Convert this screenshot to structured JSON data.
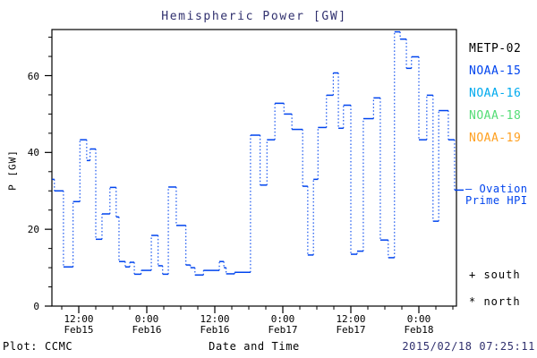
{
  "title": "Hemispheric Power [GW]",
  "colors": {
    "title": "#30306e",
    "axis": "#000000",
    "timestamp": "#30306e",
    "hpi_line": "#0044ee"
  },
  "legend": {
    "satellites": [
      {
        "label": "METP-02",
        "color": "#000000"
      },
      {
        "label": "NOAA-15",
        "color": "#0044ee"
      },
      {
        "label": "NOAA-16",
        "color": "#00aaee"
      },
      {
        "label": "NOAA-18",
        "color": "#55dd77"
      },
      {
        "label": "NOAA-19",
        "color": "#ffa020"
      }
    ],
    "model": {
      "line1": "– Ovation",
      "line2": "Prime HPI",
      "color": "#0044ee"
    },
    "markers": [
      {
        "text": "+ south"
      },
      {
        "text": "* north"
      }
    ]
  },
  "footer": {
    "left": "Plot: CCMC",
    "center": "Date and Time",
    "right": "2015/02/18 07:25:11"
  },
  "chart_data": {
    "type": "line",
    "subtype": "dotted-step-histogram",
    "title": "Hemispheric Power [GW]",
    "xlabel": "Date and Time",
    "ylabel": "P [GW]",
    "ylim": [
      0,
      72
    ],
    "yticks_major": [
      0,
      20,
      40,
      60
    ],
    "ytick_minor_step": 5,
    "x_hours_range": [
      7.3,
      79.9
    ],
    "xticks_major": [
      {
        "hour": 12,
        "top": "12:00",
        "bottom": "Feb15"
      },
      {
        "hour": 24,
        "top": "0:00",
        "bottom": "Feb16"
      },
      {
        "hour": 36,
        "top": "12:00",
        "bottom": "Feb16"
      },
      {
        "hour": 48,
        "top": "0:00",
        "bottom": "Feb17"
      },
      {
        "hour": 60,
        "top": "12:00",
        "bottom": "Feb17"
      },
      {
        "hour": 72,
        "top": "0:00",
        "bottom": "Feb18"
      }
    ],
    "xtick_minor_step_hours": 3,
    "line_color": "#0044ee",
    "grid": false,
    "legend_position": "right-outside",
    "series": [
      {
        "name": "Ovation Prime HPI",
        "units": "GW",
        "step_points_hours_vs_gw": [
          [
            7.3,
            33.0
          ],
          [
            7.7,
            30.0
          ],
          [
            9.3,
            10.2
          ],
          [
            11.0,
            27.2
          ],
          [
            12.2,
            43.3
          ],
          [
            13.4,
            37.9
          ],
          [
            14.0,
            40.9
          ],
          [
            15.0,
            17.4
          ],
          [
            16.1,
            24.0
          ],
          [
            17.5,
            30.9
          ],
          [
            18.6,
            23.2
          ],
          [
            19.1,
            11.6
          ],
          [
            20.2,
            10.2
          ],
          [
            21.0,
            11.4
          ],
          [
            21.8,
            8.3
          ],
          [
            23.0,
            9.3
          ],
          [
            24.8,
            18.4
          ],
          [
            26.0,
            10.5
          ],
          [
            26.8,
            8.3
          ],
          [
            27.8,
            31.0
          ],
          [
            29.2,
            21.0
          ],
          [
            30.9,
            10.7
          ],
          [
            31.7,
            10.0
          ],
          [
            32.5,
            8.1
          ],
          [
            34.0,
            9.3
          ],
          [
            36.8,
            11.6
          ],
          [
            37.6,
            10.0
          ],
          [
            38.0,
            8.4
          ],
          [
            39.5,
            8.8
          ],
          [
            42.3,
            44.5
          ],
          [
            44.0,
            31.5
          ],
          [
            45.2,
            43.3
          ],
          [
            46.6,
            52.8
          ],
          [
            48.2,
            50.0
          ],
          [
            49.6,
            46.0
          ],
          [
            51.5,
            31.2
          ],
          [
            52.4,
            13.3
          ],
          [
            53.4,
            33.0
          ],
          [
            54.2,
            46.5
          ],
          [
            55.7,
            54.9
          ],
          [
            56.9,
            60.7
          ],
          [
            57.8,
            46.3
          ],
          [
            58.7,
            52.3
          ],
          [
            60.0,
            13.5
          ],
          [
            61.1,
            14.3
          ],
          [
            62.2,
            48.8
          ],
          [
            64.0,
            54.2
          ],
          [
            65.2,
            17.2
          ],
          [
            66.6,
            12.6
          ],
          [
            67.7,
            71.4
          ],
          [
            68.7,
            69.5
          ],
          [
            69.8,
            61.9
          ],
          [
            70.7,
            64.9
          ],
          [
            72.0,
            43.3
          ],
          [
            73.4,
            54.9
          ],
          [
            74.5,
            22.1
          ],
          [
            75.5,
            50.9
          ],
          [
            77.2,
            43.3
          ],
          [
            78.3,
            30.2
          ]
        ]
      }
    ]
  }
}
